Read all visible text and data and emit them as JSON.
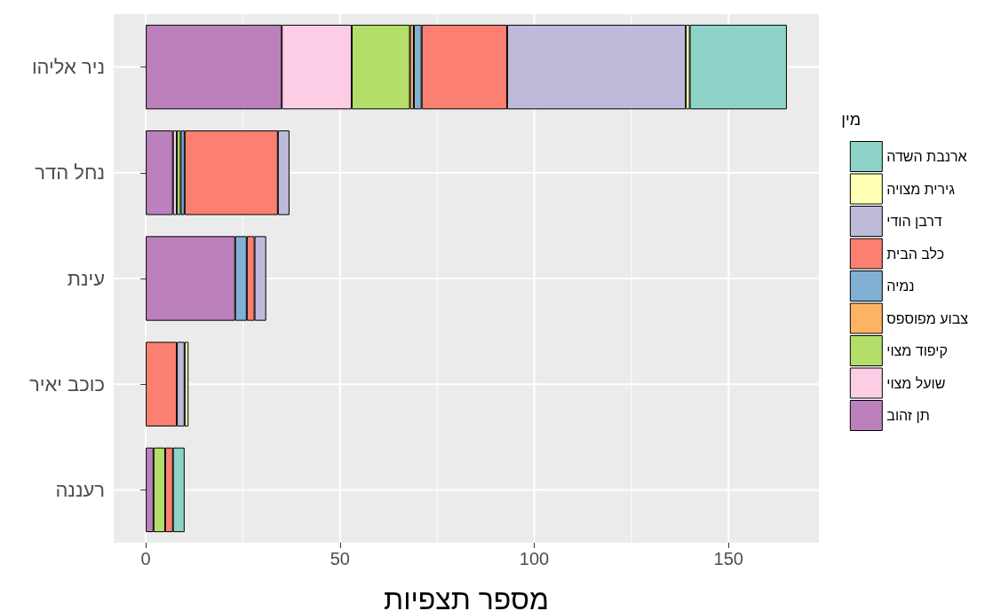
{
  "chart_data": {
    "type": "bar",
    "orientation": "horizontal",
    "stacked": true,
    "categories": [
      "ניר אליהו",
      "נחל הדר",
      "עינת",
      "כוכב יאיר",
      "רעננה"
    ],
    "series": [
      {
        "name": "תן זהוב",
        "color": "#bc80bd",
        "values": [
          35,
          7,
          23,
          null,
          2
        ]
      },
      {
        "name": "שועל מצוי",
        "color": "#fccde5",
        "values": [
          18,
          1,
          null,
          null,
          null
        ]
      },
      {
        "name": "קיפוד מצוי",
        "color": "#b3de69",
        "values": [
          15,
          1,
          null,
          null,
          3
        ]
      },
      {
        "name": "צבוע מפוספס",
        "color": "#fdb462",
        "values": [
          1,
          null,
          null,
          null,
          null
        ]
      },
      {
        "name": "נמיה",
        "color": "#80b1d3",
        "values": [
          2,
          1,
          3,
          null,
          null
        ]
      },
      {
        "name": "כלב הבית",
        "color": "#fb8072",
        "values": [
          22,
          24,
          2,
          8,
          2
        ]
      },
      {
        "name": "דרבן הודי",
        "color": "#bebada",
        "values": [
          46,
          3,
          3,
          2,
          null
        ]
      },
      {
        "name": "גירית מצויה",
        "color": "#ffffb3",
        "values": [
          1,
          null,
          null,
          1,
          null
        ]
      },
      {
        "name": "ארנבת השדה",
        "color": "#8dd3c7",
        "values": [
          25,
          null,
          null,
          null,
          3
        ]
      }
    ],
    "xlabel": "מספר תצפיות",
    "legend_title": "מין",
    "xlim": [
      -8.25,
      173.25
    ],
    "xticks": [
      0,
      50,
      100,
      150
    ],
    "grid": true,
    "legend": "right"
  }
}
